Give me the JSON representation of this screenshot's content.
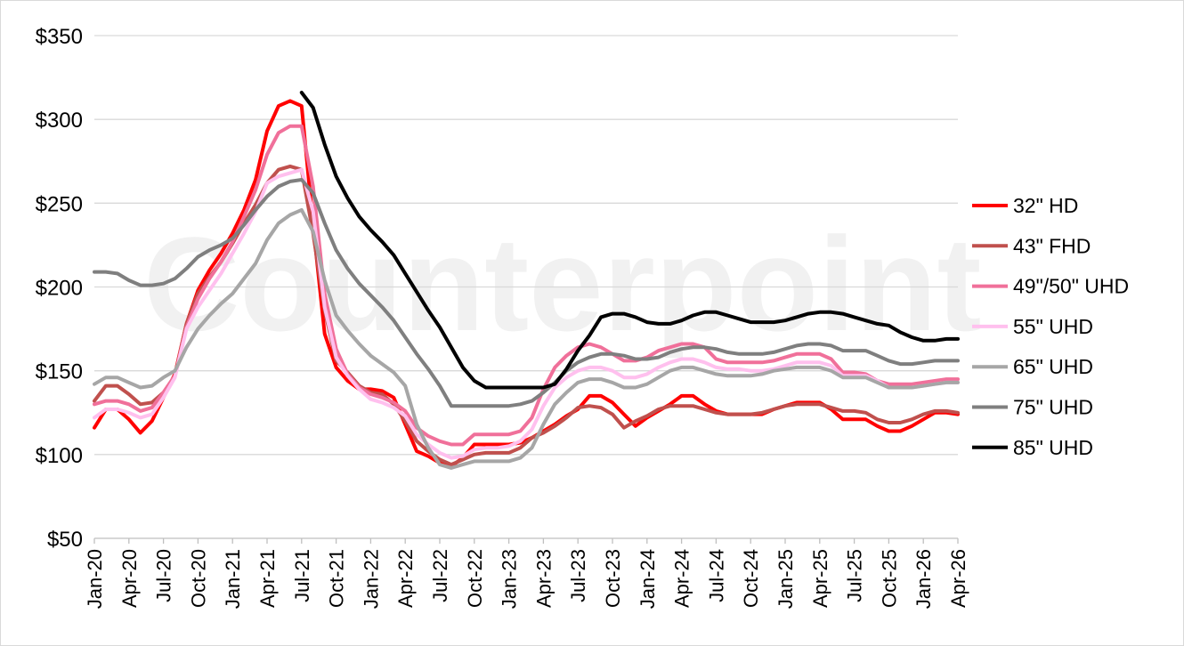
{
  "chart_data": {
    "type": "line",
    "title": "",
    "xlabel": "",
    "ylabel": "",
    "ylim": [
      50,
      350
    ],
    "yticks": [
      "$50",
      "$100",
      "$150",
      "$200",
      "$250",
      "$300",
      "$350"
    ],
    "ytick_values": [
      50,
      100,
      150,
      200,
      250,
      300,
      350
    ],
    "grid": "horizontal",
    "legend_position": "right",
    "watermark": "Counterpoint",
    "x": [
      "Jan-20",
      "Feb-20",
      "Mar-20",
      "Apr-20",
      "May-20",
      "Jun-20",
      "Jul-20",
      "Aug-20",
      "Sep-20",
      "Oct-20",
      "Nov-20",
      "Dec-20",
      "Jan-21",
      "Feb-21",
      "Mar-21",
      "Apr-21",
      "May-21",
      "Jun-21",
      "Jul-21",
      "Aug-21",
      "Sep-21",
      "Oct-21",
      "Nov-21",
      "Dec-21",
      "Jan-22",
      "Feb-22",
      "Mar-22",
      "Apr-22",
      "May-22",
      "Jun-22",
      "Jul-22",
      "Aug-22",
      "Sep-22",
      "Oct-22",
      "Nov-22",
      "Dec-22",
      "Jan-23",
      "Feb-23",
      "Mar-23",
      "Apr-23",
      "May-23",
      "Jun-23",
      "Jul-23",
      "Aug-23",
      "Sep-23",
      "Oct-23",
      "Nov-23",
      "Dec-23",
      "Jan-24",
      "Feb-24",
      "Mar-24",
      "Apr-24",
      "May-24",
      "Jun-24",
      "Jul-24",
      "Aug-24",
      "Sep-24",
      "Oct-24",
      "Nov-24",
      "Dec-24",
      "Jan-25",
      "Feb-25",
      "Mar-25",
      "Apr-25",
      "May-25",
      "Jun-25",
      "Jul-25",
      "Aug-25",
      "Sep-25",
      "Oct-25",
      "Nov-25",
      "Dec-25",
      "Jan-26",
      "Feb-26",
      "Mar-26",
      "Apr-26"
    ],
    "x_tick_labels": [
      "Jan-20",
      "Apr-20",
      "Jul-20",
      "Oct-20",
      "Jan-21",
      "Apr-21",
      "Jul-21",
      "Oct-21",
      "Jan-22",
      "Apr-22",
      "Jul-22",
      "Oct-22",
      "Jan-23",
      "Apr-23",
      "Jul-23",
      "Oct-23",
      "Jan-24",
      "Apr-24",
      "Jul-24",
      "Oct-24",
      "Jan-25",
      "Apr-25",
      "Jul-25",
      "Oct-25",
      "Jan-26",
      "Apr-26"
    ],
    "series": [
      {
        "name": "32\" HD",
        "color": "#ff0000",
        "values": [
          116,
          127,
          127,
          121,
          113,
          120,
          134,
          148,
          178,
          198,
          210,
          220,
          232,
          246,
          264,
          293,
          308,
          311,
          308,
          237,
          172,
          152,
          144,
          139,
          139,
          138,
          134,
          118,
          102,
          99,
          95,
          93,
          98,
          106,
          106,
          106,
          106,
          107,
          110,
          114,
          118,
          123,
          127,
          135,
          135,
          131,
          124,
          117,
          122,
          126,
          130,
          135,
          135,
          130,
          126,
          124,
          124,
          124,
          124,
          127,
          129,
          131,
          131,
          131,
          127,
          121,
          121,
          121,
          117,
          114,
          114,
          117,
          121,
          125,
          125,
          124
        ]
      },
      {
        "name": "43\" FHD",
        "color": "#c0504d",
        "values": [
          132,
          141,
          141,
          136,
          130,
          131,
          137,
          147,
          178,
          196,
          206,
          215,
          226,
          238,
          249,
          262,
          270,
          272,
          270,
          232,
          186,
          156,
          149,
          141,
          137,
          136,
          130,
          120,
          108,
          102,
          97,
          94,
          97,
          100,
          101,
          101,
          101,
          104,
          110,
          113,
          117,
          122,
          128,
          129,
          128,
          124,
          116,
          120,
          123,
          127,
          129,
          129,
          129,
          127,
          125,
          124,
          124,
          124,
          125,
          127,
          129,
          130,
          130,
          130,
          128,
          126,
          126,
          125,
          121,
          119,
          119,
          121,
          124,
          126,
          126,
          125
        ]
      },
      {
        "name": "49\"/50\" UHD",
        "color": "#f0709a",
        "values": [
          130,
          132,
          132,
          130,
          126,
          128,
          137,
          147,
          176,
          193,
          205,
          215,
          227,
          242,
          258,
          279,
          292,
          296,
          296,
          260,
          196,
          163,
          148,
          140,
          136,
          134,
          131,
          126,
          116,
          111,
          108,
          106,
          106,
          112,
          112,
          112,
          112,
          114,
          122,
          139,
          152,
          159,
          164,
          166,
          164,
          160,
          156,
          156,
          158,
          162,
          164,
          166,
          166,
          164,
          157,
          155,
          155,
          155,
          155,
          156,
          158,
          160,
          160,
          160,
          157,
          149,
          149,
          148,
          144,
          142,
          142,
          142,
          143,
          144,
          145,
          145
        ]
      },
      {
        "name": "55\" UHD",
        "color": "#ffc0ee",
        "values": [
          122,
          127,
          127,
          125,
          122,
          124,
          134,
          146,
          175,
          188,
          198,
          208,
          220,
          232,
          245,
          262,
          266,
          268,
          270,
          245,
          188,
          158,
          147,
          139,
          133,
          131,
          128,
          123,
          112,
          106,
          101,
          98,
          99,
          103,
          104,
          104,
          105,
          108,
          115,
          129,
          140,
          146,
          150,
          152,
          152,
          150,
          146,
          146,
          148,
          152,
          155,
          157,
          157,
          155,
          152,
          151,
          151,
          150,
          150,
          151,
          153,
          155,
          155,
          155,
          153,
          147,
          147,
          147,
          144,
          140,
          140,
          140,
          141,
          142,
          143,
          143
        ]
      },
      {
        "name": "65\" UHD",
        "color": "#a6a6a6",
        "values": [
          142,
          146,
          146,
          143,
          140,
          141,
          146,
          150,
          164,
          175,
          183,
          190,
          196,
          205,
          214,
          228,
          238,
          243,
          246,
          233,
          204,
          183,
          174,
          166,
          159,
          154,
          149,
          141,
          118,
          104,
          94,
          92,
          94,
          96,
          96,
          96,
          96,
          98,
          104,
          118,
          130,
          137,
          143,
          145,
          145,
          143,
          140,
          140,
          142,
          146,
          150,
          152,
          152,
          150,
          148,
          147,
          147,
          147,
          148,
          150,
          151,
          152,
          152,
          152,
          150,
          146,
          146,
          146,
          143,
          140,
          140,
          140,
          141,
          142,
          143,
          143
        ]
      },
      {
        "name": "75\" UHD",
        "color": "#7f7f7f",
        "values": [
          209,
          209,
          208,
          204,
          201,
          201,
          202,
          205,
          211,
          218,
          222,
          225,
          229,
          237,
          246,
          254,
          260,
          263,
          264,
          256,
          238,
          222,
          211,
          202,
          195,
          188,
          180,
          170,
          160,
          151,
          141,
          129,
          129,
          129,
          129,
          129,
          129,
          130,
          132,
          137,
          143,
          150,
          155,
          158,
          160,
          160,
          159,
          157,
          157,
          158,
          161,
          163,
          164,
          164,
          163,
          161,
          160,
          160,
          160,
          161,
          163,
          165,
          166,
          166,
          165,
          162,
          162,
          162,
          159,
          156,
          154,
          154,
          155,
          156,
          156,
          156
        ]
      },
      {
        "name": "85\" UHD",
        "color": "#000000",
        "values": [
          null,
          null,
          null,
          null,
          null,
          null,
          null,
          null,
          null,
          null,
          null,
          null,
          null,
          null,
          null,
          null,
          null,
          null,
          316,
          307,
          285,
          266,
          253,
          242,
          234,
          227,
          219,
          208,
          197,
          186,
          176,
          164,
          152,
          144,
          140,
          140,
          140,
          140,
          140,
          140,
          142,
          151,
          162,
          171,
          182,
          184,
          184,
          182,
          179,
          178,
          178,
          180,
          183,
          185,
          185,
          183,
          181,
          179,
          179,
          179,
          180,
          182,
          184,
          185,
          185,
          184,
          182,
          180,
          178,
          177,
          173,
          170,
          168,
          168,
          169,
          169
        ]
      }
    ]
  }
}
